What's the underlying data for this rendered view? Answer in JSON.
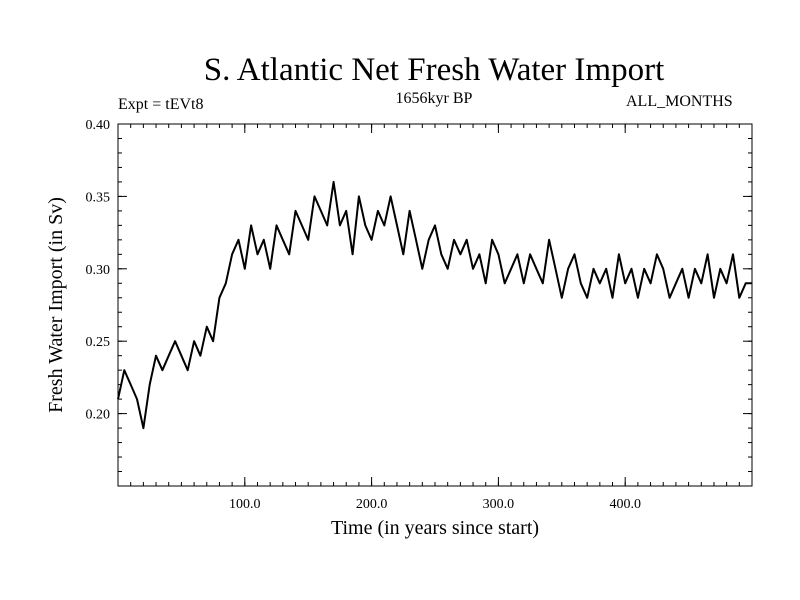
{
  "chart_data": {
    "type": "line",
    "title": "S. Atlantic Net Fresh Water Import",
    "experiment_label": "Expt = tEVt8",
    "period_label": "1656kyr BP",
    "months_label": "ALL_MONTHS",
    "xlabel": "Time (in years since start)",
    "ylabel": "Fresh Water Import (in Sv)",
    "xlim": [
      0,
      500
    ],
    "ylim": [
      0.15,
      0.4
    ],
    "x_ticks": [
      100,
      200,
      300,
      400
    ],
    "x_tick_labels": [
      "100.0",
      "200.0",
      "300.0",
      "400.0"
    ],
    "y_ticks": [
      0.2,
      0.25,
      0.3,
      0.35,
      0.4
    ],
    "y_tick_labels": [
      "0.20",
      "0.25",
      "0.30",
      "0.35",
      "0.40"
    ],
    "series": [
      {
        "name": "Fresh Water Import",
        "color": "#000000",
        "x": [
          0,
          5,
          10,
          15,
          20,
          25,
          30,
          35,
          40,
          45,
          50,
          55,
          60,
          65,
          70,
          75,
          80,
          85,
          90,
          95,
          100,
          105,
          110,
          115,
          120,
          125,
          130,
          135,
          140,
          145,
          150,
          155,
          160,
          165,
          170,
          175,
          180,
          185,
          190,
          195,
          200,
          205,
          210,
          215,
          220,
          225,
          230,
          235,
          240,
          245,
          250,
          255,
          260,
          265,
          270,
          275,
          280,
          285,
          290,
          295,
          300,
          305,
          310,
          315,
          320,
          325,
          330,
          335,
          340,
          345,
          350,
          355,
          360,
          365,
          370,
          375,
          380,
          385,
          390,
          395,
          400,
          405,
          410,
          415,
          420,
          425,
          430,
          435,
          440,
          445,
          450,
          455,
          460,
          465,
          470,
          475,
          480,
          485,
          490,
          495,
          500
        ],
        "values": [
          0.21,
          0.23,
          0.22,
          0.21,
          0.19,
          0.22,
          0.24,
          0.23,
          0.24,
          0.25,
          0.24,
          0.23,
          0.25,
          0.24,
          0.26,
          0.25,
          0.28,
          0.29,
          0.31,
          0.32,
          0.3,
          0.33,
          0.31,
          0.32,
          0.3,
          0.33,
          0.32,
          0.31,
          0.34,
          0.33,
          0.32,
          0.35,
          0.34,
          0.33,
          0.36,
          0.33,
          0.34,
          0.31,
          0.35,
          0.33,
          0.32,
          0.34,
          0.33,
          0.35,
          0.33,
          0.31,
          0.34,
          0.32,
          0.3,
          0.32,
          0.33,
          0.31,
          0.3,
          0.32,
          0.31,
          0.32,
          0.3,
          0.31,
          0.29,
          0.32,
          0.31,
          0.29,
          0.3,
          0.31,
          0.29,
          0.31,
          0.3,
          0.29,
          0.32,
          0.3,
          0.28,
          0.3,
          0.31,
          0.29,
          0.28,
          0.3,
          0.29,
          0.3,
          0.28,
          0.31,
          0.29,
          0.3,
          0.28,
          0.3,
          0.29,
          0.31,
          0.3,
          0.28,
          0.29,
          0.3,
          0.28,
          0.3,
          0.29,
          0.31,
          0.28,
          0.3,
          0.29,
          0.31,
          0.28,
          0.29,
          0.29
        ]
      }
    ]
  }
}
